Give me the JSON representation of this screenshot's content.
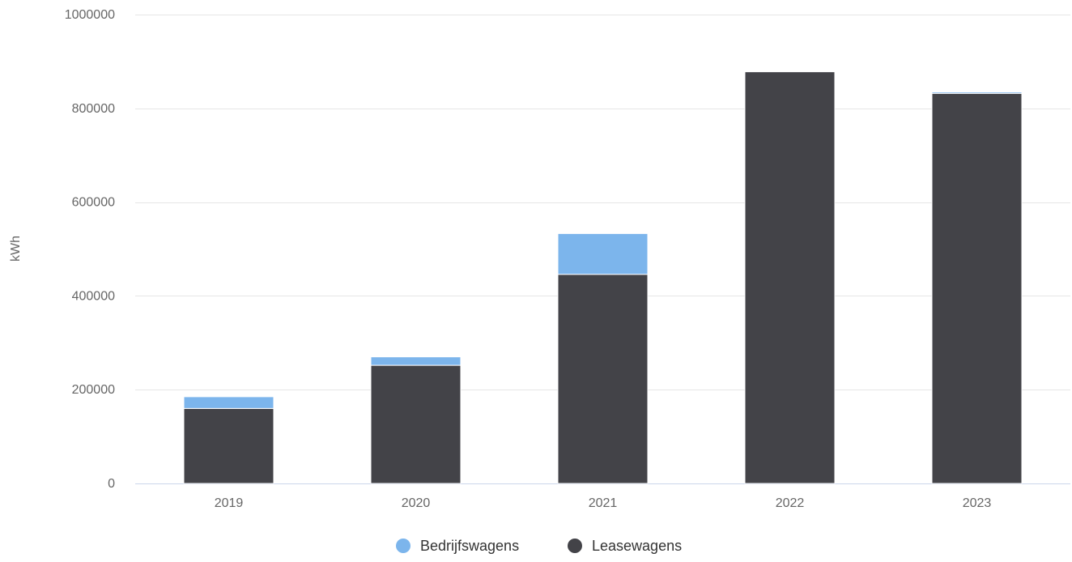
{
  "chart_data": {
    "type": "bar",
    "stacked": true,
    "title": "",
    "xlabel": "",
    "ylabel": "kWh",
    "categories": [
      "2019",
      "2020",
      "2021",
      "2022",
      "2023"
    ],
    "series": [
      {
        "name": "Leasewagens",
        "color": "#434348",
        "values": [
          160000,
          252000,
          446000,
          878000,
          832000
        ]
      },
      {
        "name": "Bedrijfswagens",
        "color": "#7cb5ec",
        "values": [
          25000,
          18000,
          87000,
          0,
          3000
        ]
      }
    ],
    "ylim": [
      0,
      1000000
    ],
    "yticks": [
      "0",
      "200000",
      "400000",
      "600000",
      "800000",
      "1000000"
    ],
    "grid": true,
    "legend": {
      "position": "bottom-center",
      "items": [
        {
          "name": "Bedrijfswagens",
          "color": "#7cb5ec",
          "marker": "circle-icon"
        },
        {
          "name": "Leasewagens",
          "color": "#434348",
          "marker": "circle-icon"
        }
      ]
    }
  }
}
